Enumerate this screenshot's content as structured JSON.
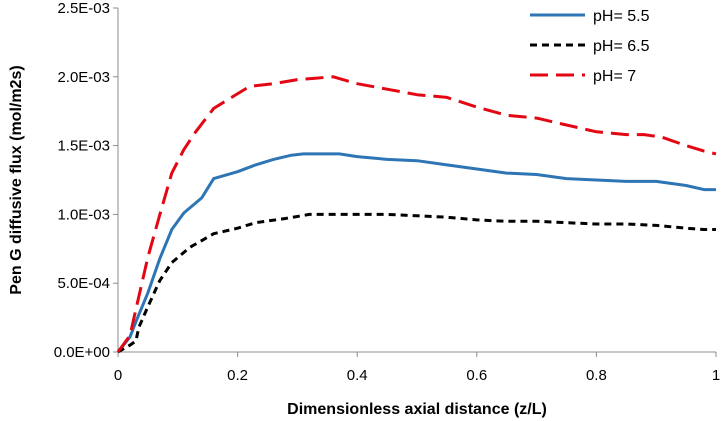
{
  "chart_data": {
    "type": "line",
    "xlabel": "Dimensionless axial distance (z/L)",
    "ylabel": "Pen G diffusive flux (mol/m2s)",
    "xlim": [
      0,
      1
    ],
    "ylim": [
      0,
      0.0025
    ],
    "x_ticks": [
      0,
      0.2,
      0.4,
      0.6,
      0.8,
      1
    ],
    "x_tick_labels": [
      "0",
      "0.2",
      "0.4",
      "0.6",
      "0.8",
      "1"
    ],
    "y_ticks": [
      0,
      0.0005,
      0.001,
      0.0015,
      0.002,
      0.0025
    ],
    "y_tick_labels": [
      "0.0E+00",
      "5.0E-04",
      "1.0E-03",
      "1.5E-03",
      "2.0E-03",
      "2.5E-03"
    ],
    "grid": false,
    "legend_position": "top-right",
    "series": [
      {
        "name": "pH= 5.5",
        "color": "#2e75b6",
        "line_style": "solid",
        "x": [
          0,
          0.02,
          0.03,
          0.05,
          0.07,
          0.09,
          0.11,
          0.14,
          0.16,
          0.2,
          0.23,
          0.26,
          0.29,
          0.31,
          0.35,
          0.37,
          0.4,
          0.45,
          0.5,
          0.55,
          0.6,
          0.65,
          0.7,
          0.75,
          0.8,
          0.85,
          0.9,
          0.95,
          0.98,
          1.0
        ],
        "y": [
          0,
          0.00011,
          0.00022,
          0.00043,
          0.00068,
          0.00089,
          0.00101,
          0.00112,
          0.00126,
          0.00131,
          0.00136,
          0.0014,
          0.00143,
          0.00144,
          0.00144,
          0.00144,
          0.00142,
          0.0014,
          0.00139,
          0.00136,
          0.00133,
          0.0013,
          0.00129,
          0.00126,
          0.00125,
          0.00124,
          0.00124,
          0.00121,
          0.00118,
          0.00118
        ]
      },
      {
        "name": "pH= 6.5",
        "color": "#000000",
        "line_style": "dashed",
        "x": [
          0,
          0.02,
          0.03,
          0.035,
          0.05,
          0.07,
          0.09,
          0.12,
          0.16,
          0.2,
          0.23,
          0.28,
          0.32,
          0.35,
          0.4,
          0.45,
          0.5,
          0.55,
          0.6,
          0.65,
          0.7,
          0.75,
          0.8,
          0.85,
          0.9,
          0.95,
          0.98,
          1.0
        ],
        "y": [
          0,
          5e-05,
          8e-05,
          0.00018,
          0.00033,
          0.00052,
          0.00065,
          0.00076,
          0.00086,
          0.0009,
          0.00094,
          0.00097,
          0.001,
          0.001,
          0.001,
          0.001,
          0.00099,
          0.00098,
          0.00096,
          0.00095,
          0.00095,
          0.00094,
          0.00093,
          0.00093,
          0.00092,
          0.0009,
          0.00089,
          0.00089
        ]
      },
      {
        "name": "pH= 7",
        "color": "#e30613",
        "line_style": "long-dashed",
        "x": [
          0,
          0.02,
          0.03,
          0.05,
          0.07,
          0.09,
          0.11,
          0.13,
          0.16,
          0.19,
          0.22,
          0.26,
          0.3,
          0.33,
          0.36,
          0.4,
          0.45,
          0.5,
          0.55,
          0.6,
          0.65,
          0.7,
          0.75,
          0.8,
          0.85,
          0.88,
          0.91,
          0.95,
          0.98,
          1.0
        ],
        "y": [
          0,
          0.00012,
          0.00031,
          0.00069,
          0.001,
          0.0013,
          0.00147,
          0.0016,
          0.00177,
          0.00185,
          0.00193,
          0.00195,
          0.00198,
          0.00199,
          0.002,
          0.00195,
          0.00191,
          0.00187,
          0.00185,
          0.00178,
          0.00172,
          0.0017,
          0.00165,
          0.0016,
          0.00158,
          0.00158,
          0.00156,
          0.0015,
          0.00146,
          0.00144
        ]
      }
    ]
  }
}
